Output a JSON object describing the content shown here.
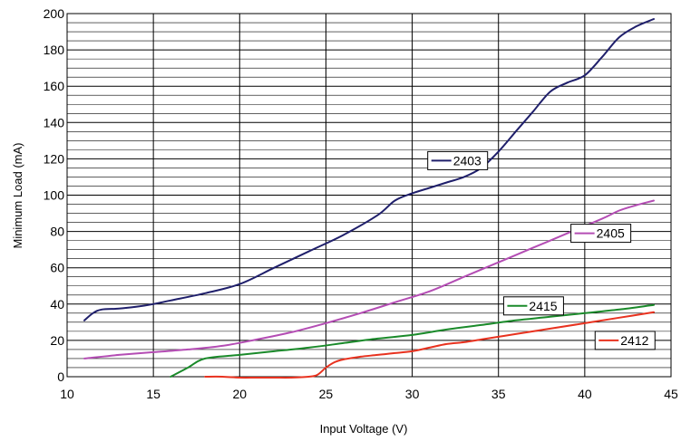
{
  "chart_data": {
    "type": "line",
    "xlabel": "Input Voltage (V)",
    "ylabel": "Minimum Load (mA)",
    "xlim": [
      10,
      45
    ],
    "ylim": [
      0,
      200
    ],
    "x_ticks": [
      "10",
      "15",
      "20",
      "25",
      "30",
      "35",
      "40",
      "45"
    ],
    "y_ticks": [
      "0",
      "20",
      "40",
      "60",
      "80",
      "100",
      "120",
      "140",
      "160",
      "180",
      "200"
    ],
    "grid": "on",
    "series": [
      {
        "name": "2403",
        "color": "#1f1f6b",
        "x": [
          11,
          11.5,
          12,
          13,
          14,
          15,
          16,
          18,
          20,
          22,
          24,
          26,
          28,
          29,
          30,
          31,
          32,
          33,
          34,
          35,
          36,
          37,
          38,
          39,
          40,
          41,
          42,
          43,
          44
        ],
        "y": [
          31,
          35,
          37,
          37.5,
          38.5,
          40,
          42,
          46,
          51,
          60,
          69,
          78,
          89,
          97,
          101,
          104,
          107,
          110,
          115,
          124,
          135,
          146,
          157,
          162,
          166,
          176,
          187,
          193,
          197
        ],
        "legend_x": 30.9,
        "legend_y": 119
      },
      {
        "name": "2405",
        "color": "#b44db4",
        "x": [
          11,
          13,
          15,
          17,
          19,
          21,
          23,
          25,
          27,
          29,
          31,
          33,
          35,
          37,
          39,
          41,
          42,
          43,
          44
        ],
        "y": [
          10,
          12,
          13.5,
          15,
          17,
          20.5,
          24.5,
          29.5,
          35,
          41,
          47,
          55,
          63,
          71,
          79,
          87,
          91.5,
          94.5,
          97
        ],
        "legend_x": 39.2,
        "legend_y": 79
      },
      {
        "name": "2415",
        "color": "#1a8a2a",
        "x": [
          16,
          17,
          18,
          20,
          22,
          24,
          26,
          28,
          30,
          32,
          34,
          36,
          38,
          40,
          42,
          44
        ],
        "y": [
          0,
          5,
          10,
          12,
          14,
          16,
          18.5,
          21,
          23,
          26,
          28.5,
          31,
          33,
          35,
          37,
          39.5
        ],
        "legend_x": 35.3,
        "legend_y": 39
      },
      {
        "name": "2412",
        "color": "#e8321f",
        "x": [
          18,
          19,
          20,
          21,
          22,
          23,
          24,
          24.5,
          25,
          25.5,
          26,
          27,
          28,
          29,
          30,
          31,
          32,
          33,
          34,
          35,
          36,
          38,
          40,
          42,
          44
        ],
        "y": [
          0,
          0,
          -0.5,
          -0.5,
          -0.5,
          -0.5,
          0,
          1,
          5,
          8,
          9.5,
          11,
          12,
          13,
          14,
          16,
          18,
          19,
          20.5,
          22,
          23.5,
          26.5,
          29.5,
          32.5,
          35.5
        ],
        "legend_x": 40.6,
        "legend_y": 20
      }
    ]
  }
}
